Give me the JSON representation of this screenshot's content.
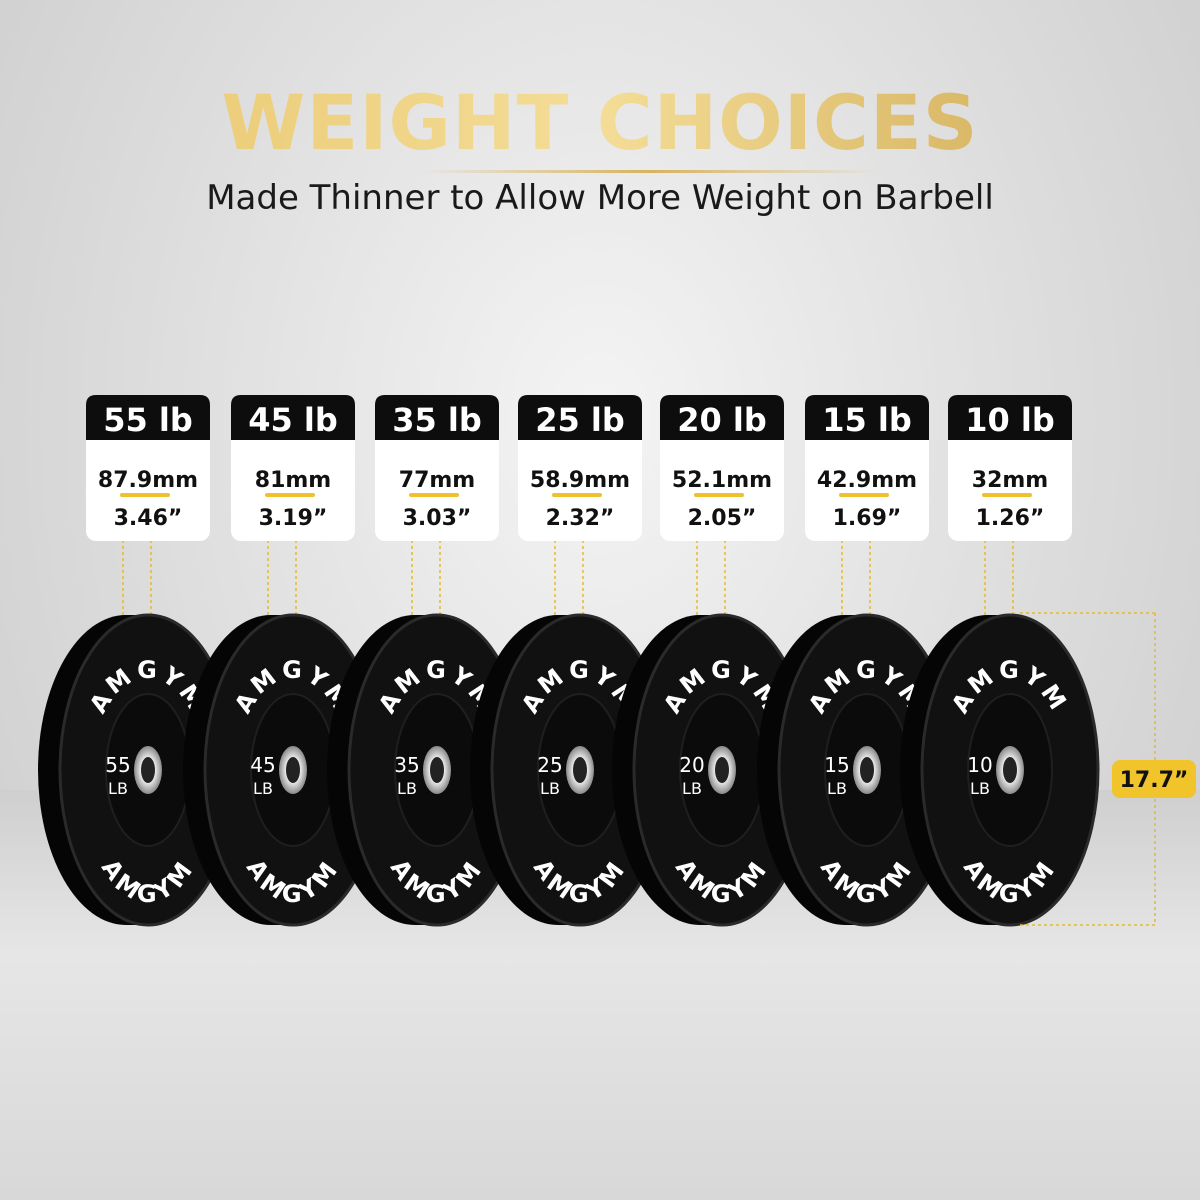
{
  "header": {
    "title": "WEIGHT CHOICES",
    "subtitle": "Made Thinner to Allow More Weight on Barbell"
  },
  "brand": "AMGYM",
  "diameter": "17.7”",
  "plates": [
    {
      "weight": "55 lb",
      "thickness_mm": "87.9mm",
      "thickness_in": "3.46”",
      "face_number": "55",
      "face_unit": "LB"
    },
    {
      "weight": "45 lb",
      "thickness_mm": "81mm",
      "thickness_in": "3.19”",
      "face_number": "45",
      "face_unit": "LB"
    },
    {
      "weight": "35 lb",
      "thickness_mm": "77mm",
      "thickness_in": "3.03”",
      "face_number": "35",
      "face_unit": "LB"
    },
    {
      "weight": "25 lb",
      "thickness_mm": "58.9mm",
      "thickness_in": "2.32”",
      "face_number": "25",
      "face_unit": "LB"
    },
    {
      "weight": "20 lb",
      "thickness_mm": "52.1mm",
      "thickness_in": "2.05”",
      "face_number": "20",
      "face_unit": "LB"
    },
    {
      "weight": "15 lb",
      "thickness_mm": "42.9mm",
      "thickness_in": "1.69”",
      "face_number": "15",
      "face_unit": "LB"
    },
    {
      "weight": "10 lb",
      "thickness_mm": "32mm",
      "thickness_in": "1.26”",
      "face_number": "10",
      "face_unit": "LB"
    }
  ]
}
